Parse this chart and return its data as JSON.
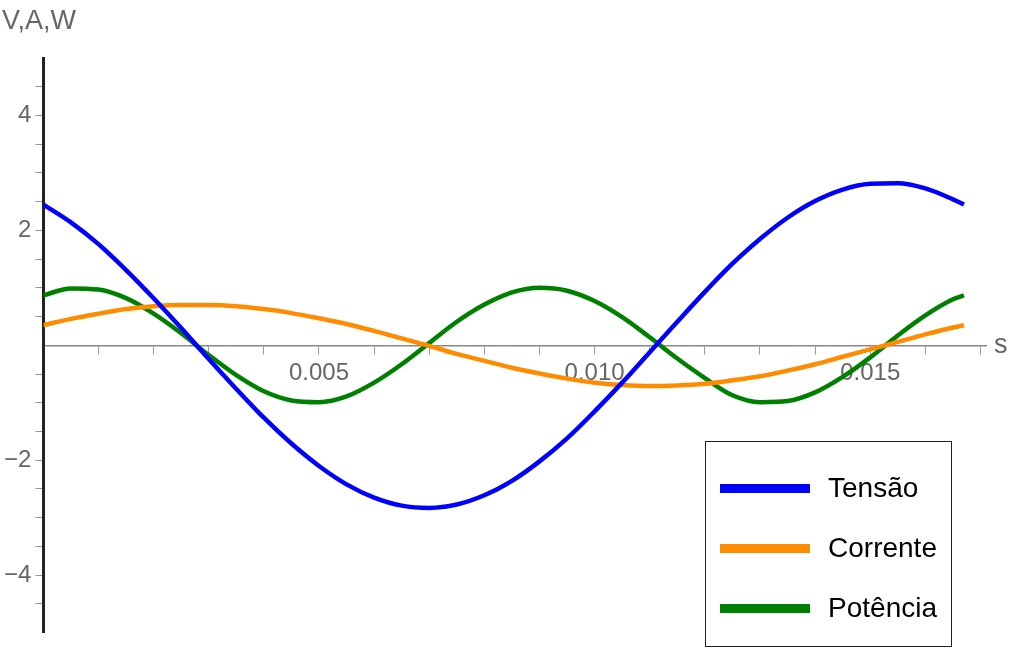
{
  "chart_data": {
    "type": "line",
    "xlabel": "s",
    "ylabel": "V,A,W",
    "x": [
      0,
      0.0005,
      0.001,
      0.0015,
      0.002,
      0.0025,
      0.003,
      0.0035,
      0.004,
      0.0045,
      0.005,
      0.0055,
      0.006,
      0.0065,
      0.007,
      0.0075,
      0.008,
      0.0085,
      0.009,
      0.0095,
      0.01,
      0.0105,
      0.011,
      0.0115,
      0.012,
      0.0125,
      0.013,
      0.0135,
      0.014,
      0.0145,
      0.015,
      0.0155,
      0.016,
      0.0165,
      0.0167
    ],
    "series": [
      {
        "name": "Tensão",
        "color": "#0000ff",
        "values": [
          2.45,
          2.14,
          1.76,
          1.31,
          0.82,
          0.3,
          -0.24,
          -0.76,
          -1.26,
          -1.71,
          -2.1,
          -2.42,
          -2.65,
          -2.79,
          -2.83,
          -2.77,
          -2.61,
          -2.36,
          -2.02,
          -1.62,
          -1.15,
          -0.65,
          -0.12,
          0.41,
          0.93,
          1.42,
          1.85,
          2.22,
          2.51,
          2.71,
          2.81,
          2.82,
          2.73,
          2.54,
          2.45
        ]
      },
      {
        "name": "Corrente",
        "color": "#ff8c00",
        "values": [
          0.35,
          0.46,
          0.55,
          0.63,
          0.68,
          0.7,
          0.7,
          0.68,
          0.63,
          0.56,
          0.47,
          0.37,
          0.25,
          0.12,
          -0.01,
          -0.15,
          -0.27,
          -0.39,
          -0.49,
          -0.58,
          -0.65,
          -0.69,
          -0.71,
          -0.7,
          -0.67,
          -0.61,
          -0.54,
          -0.44,
          -0.33,
          -0.2,
          -0.07,
          0.06,
          0.19,
          0.31,
          0.35
        ]
      },
      {
        "name": "Potência",
        "color": "#008000",
        "values": [
          0.87,
          0.99,
          0.97,
          0.82,
          0.55,
          0.21,
          -0.17,
          -0.52,
          -0.8,
          -0.96,
          -0.99,
          -0.89,
          -0.65,
          -0.33,
          0.04,
          0.41,
          0.71,
          0.92,
          1.0,
          0.95,
          0.77,
          0.49,
          0.14,
          -0.23,
          -0.57,
          -0.87,
          -0.99,
          -0.97,
          -0.82,
          -0.55,
          -0.21,
          0.17,
          0.52,
          0.8,
          0.87
        ]
      }
    ],
    "xlim": [
      0,
      0.0171
    ],
    "xticks": [
      {
        "value": 0.001,
        "label": null
      },
      {
        "value": 0.002,
        "label": null
      },
      {
        "value": 0.003,
        "label": null
      },
      {
        "value": 0.004,
        "label": null
      },
      {
        "value": 0.005,
        "label": "0.005"
      },
      {
        "value": 0.006,
        "label": null
      },
      {
        "value": 0.007,
        "label": null
      },
      {
        "value": 0.008,
        "label": null
      },
      {
        "value": 0.009,
        "label": null
      },
      {
        "value": 0.01,
        "label": "0.010"
      },
      {
        "value": 0.011,
        "label": null
      },
      {
        "value": 0.012,
        "label": null
      },
      {
        "value": 0.013,
        "label": null
      },
      {
        "value": 0.014,
        "label": null
      },
      {
        "value": 0.015,
        "label": "0.015"
      },
      {
        "value": 0.016,
        "label": null
      },
      {
        "value": 0.017,
        "label": null
      }
    ],
    "ylim": [
      -5,
      5
    ],
    "yticks": [
      {
        "value": -4.5,
        "label": null
      },
      -4,
      {
        "value": -3.5,
        "label": null
      },
      {
        "value": -3,
        "label": null
      },
      {
        "value": -2.5,
        "label": null
      },
      -2,
      {
        "value": -1.5,
        "label": null
      },
      {
        "value": -1,
        "label": null
      },
      {
        "value": -0.5,
        "label": null
      },
      {
        "value": 0.5,
        "label": null
      },
      {
        "value": 1,
        "label": null
      },
      {
        "value": 1.5,
        "label": null
      },
      2,
      {
        "value": 2.5,
        "label": null
      },
      {
        "value": 3,
        "label": null
      },
      {
        "value": 3.5,
        "label": null
      },
      4,
      {
        "value": 4.5,
        "label": null
      }
    ],
    "grid": false,
    "legend": "bottom right",
    "marker": "none",
    "line_style": "solid"
  }
}
